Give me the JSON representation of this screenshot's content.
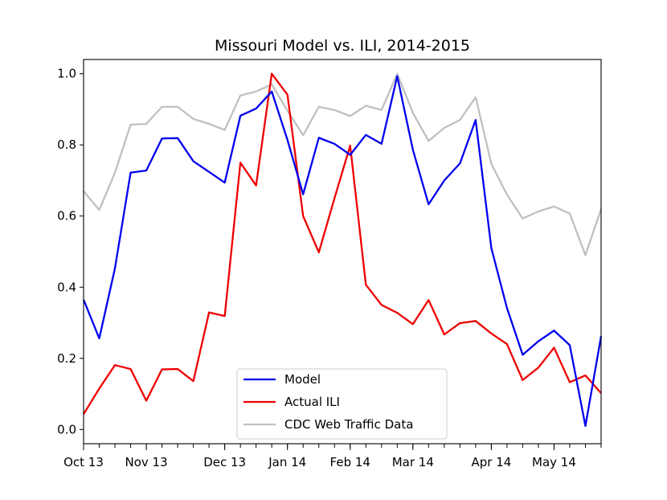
{
  "chart_data": {
    "type": "line",
    "title": "Missouri Model vs. ILI, 2014-2015",
    "xlabel": "",
    "ylabel": "",
    "ylim": [
      -0.04,
      1.04
    ],
    "yticks": [
      0.0,
      0.2,
      0.4,
      0.6,
      0.8,
      1.0
    ],
    "ytick_labels": [
      "0.0",
      "0.2",
      "0.4",
      "0.6",
      "0.8",
      "1.0"
    ],
    "x_week_count": 34,
    "xticks": [
      {
        "week": 0,
        "label": "Oct 13"
      },
      {
        "week": 4,
        "label": "Nov 13"
      },
      {
        "week": 9,
        "label": "Dec 13"
      },
      {
        "week": 13,
        "label": "Jan 14"
      },
      {
        "week": 17,
        "label": "Feb 14"
      },
      {
        "week": 21,
        "label": "Mar 14"
      },
      {
        "week": 26,
        "label": "Apr 14"
      },
      {
        "week": 30,
        "label": "May 14"
      }
    ],
    "grid": false,
    "legend_position": "bottom-center",
    "series": [
      {
        "name": "Model",
        "color": "#0000ee",
        "values": [
          0.365,
          0.256,
          0.453,
          0.722,
          0.728,
          0.818,
          0.819,
          0.754,
          0.724,
          0.694,
          0.882,
          0.902,
          0.95,
          0.814,
          0.661,
          0.82,
          0.803,
          0.772,
          0.828,
          0.803,
          0.993,
          0.786,
          0.633,
          0.7,
          0.748,
          0.87,
          0.51,
          0.341,
          0.21,
          0.248,
          0.278,
          0.237,
          0.01,
          0.262
        ]
      },
      {
        "name": "Actual ILI",
        "color": "#ee0000",
        "values": [
          0.043,
          0.115,
          0.181,
          0.17,
          0.081,
          0.169,
          0.17,
          0.136,
          0.329,
          0.319,
          0.75,
          0.686,
          1.0,
          0.941,
          0.6,
          0.498,
          0.65,
          0.798,
          0.407,
          0.35,
          0.328,
          0.296,
          0.364,
          0.267,
          0.299,
          0.305,
          0.27,
          0.24,
          0.139,
          0.174,
          0.23,
          0.133,
          0.152,
          0.102
        ]
      },
      {
        "name": "CDC Web Traffic Data",
        "color": "#c0c0c0",
        "values": [
          0.67,
          0.617,
          0.722,
          0.857,
          0.859,
          0.907,
          0.907,
          0.873,
          0.859,
          0.842,
          0.939,
          0.95,
          0.97,
          0.896,
          0.827,
          0.907,
          0.898,
          0.881,
          0.91,
          0.898,
          1.0,
          0.89,
          0.811,
          0.848,
          0.87,
          0.934,
          0.747,
          0.66,
          0.593,
          0.613,
          0.627,
          0.607,
          0.49,
          0.62
        ]
      }
    ]
  }
}
